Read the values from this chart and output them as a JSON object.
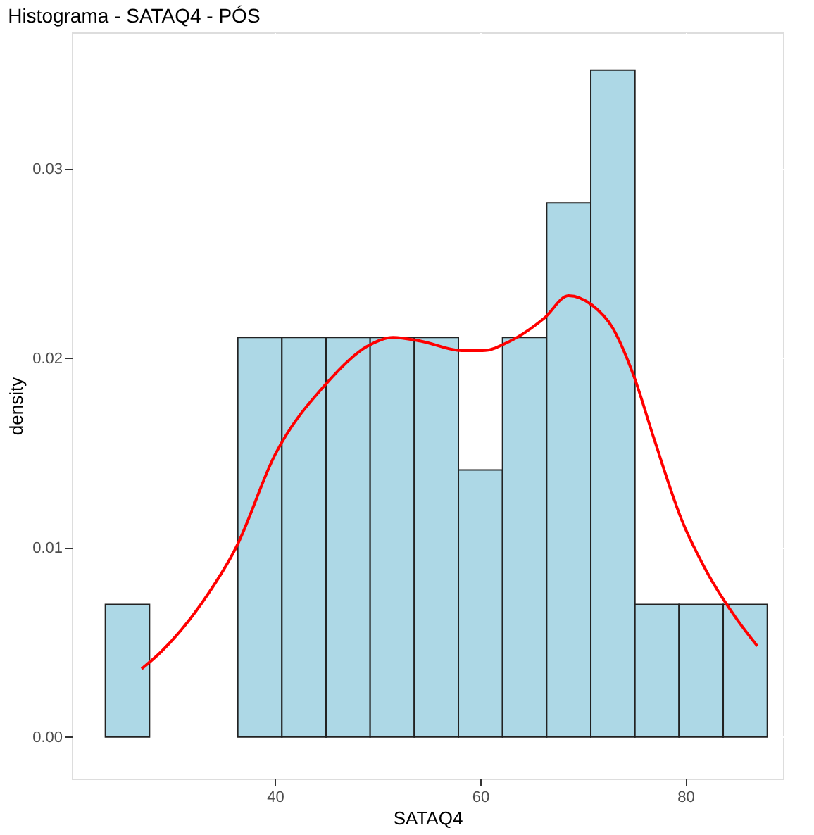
{
  "chart_data": {
    "type": "histogram",
    "title": "Histograma - SATAQ4 - PÓS",
    "xlabel": "SATAQ4",
    "ylabel": "density",
    "bins": [
      23.47,
      27.77,
      32.07,
      36.37,
      40.67,
      44.97,
      49.27,
      53.57,
      57.87,
      62.17,
      66.47,
      70.77,
      75.07,
      79.37,
      83.67,
      87.97
    ],
    "values": [
      0.007,
      0,
      0,
      0.0211,
      0.0211,
      0.0211,
      0.0211,
      0.0211,
      0.0141,
      0.0211,
      0.0282,
      0.0352,
      0.007,
      0.007,
      0.007
    ],
    "color": "#add8e6",
    "series": [
      {
        "type": "line",
        "color": "#ff0000",
        "x": [
          27.0,
          28.9,
          32.9,
          36.2,
          40.0,
          44.9,
          48.9,
          51.5,
          54.2,
          58.2,
          60.2,
          62.9,
          66.2,
          68.6,
          70.9,
          72.9,
          75.0,
          76.9,
          79.6,
          82.2,
          84.9,
          87.0
        ],
        "values": [
          0.0036,
          0.0045,
          0.0071,
          0.01,
          0.0149,
          0.0186,
          0.0206,
          0.0211,
          0.0209,
          0.0204,
          0.0204,
          0.0209,
          0.0221,
          0.0233,
          0.0228,
          0.0216,
          0.019,
          0.0158,
          0.0115,
          0.0086,
          0.0063,
          0.0048
        ]
      }
    ],
    "xlim": [
      20.2,
      89.5
    ],
    "ylim": [
      -0.0022,
      0.0372
    ],
    "xticks": [
      40,
      60,
      80
    ],
    "yticks": [
      {
        "value": 0,
        "label": "0.00"
      },
      {
        "value": 0.01,
        "label": "0.01"
      },
      {
        "value": 0.02,
        "label": "0.02"
      },
      {
        "value": 0.03,
        "label": "0.03"
      }
    ],
    "grid": true
  }
}
